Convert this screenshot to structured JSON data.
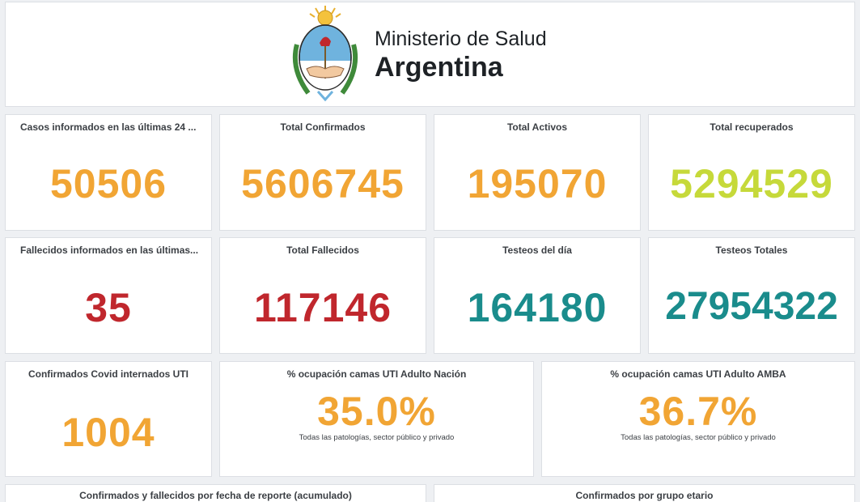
{
  "header": {
    "ministry": "Ministerio de Salud",
    "country": "Argentina"
  },
  "colors": {
    "orange": "#f1a534",
    "green": "#c6d93a",
    "red": "#c0272d",
    "teal": "#1a8c8c"
  },
  "row1": [
    {
      "title": "Casos informados en las últimas 24 ...",
      "value": "50506"
    },
    {
      "title": "Total Confirmados",
      "value": "5606745"
    },
    {
      "title": "Total Activos",
      "value": "195070"
    },
    {
      "title": "Total recuperados",
      "value": "5294529"
    }
  ],
  "row2": [
    {
      "title": "Fallecidos informados en las últimas...",
      "value": "35"
    },
    {
      "title": "Total Fallecidos",
      "value": "117146"
    },
    {
      "title": "Testeos del día",
      "value": "164180"
    },
    {
      "title": "Testeos Totales",
      "value": "27954322"
    }
  ],
  "row3": [
    {
      "title": "Confirmados Covid internados UTI",
      "value": "1004"
    },
    {
      "title": "% ocupación camas UTI Adulto Nación",
      "value": "35.0%",
      "note": "Todas las patologías, sector público y privado"
    },
    {
      "title": "% ocupación camas UTI Adulto AMBA",
      "value": "36.7%",
      "note": "Todas las patologías, sector público y privado"
    }
  ],
  "row4": [
    {
      "title": "Confirmados y fallecidos por fecha de reporte (acumulado)"
    },
    {
      "title": "Confirmados por grupo etario"
    }
  ],
  "icons": {
    "logo": "argentina-coat-of-arms-icon"
  }
}
